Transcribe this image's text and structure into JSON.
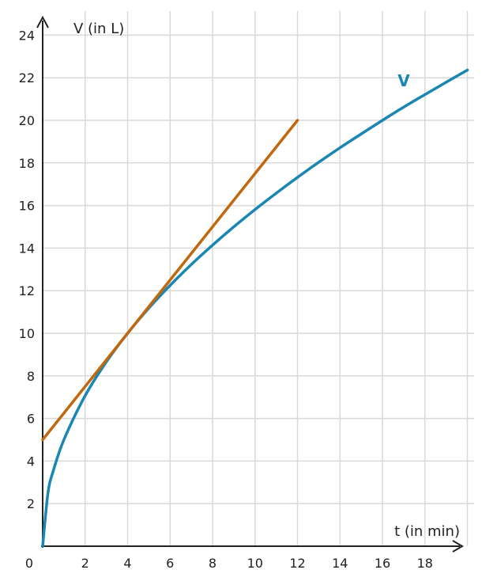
{
  "chart_data": {
    "type": "line",
    "xlabel": "t (in min)",
    "ylabel": "V (in L)",
    "origin_label": "0",
    "xlim": [
      0,
      20
    ],
    "ylim": [
      0,
      24
    ],
    "x_ticks": [
      2,
      4,
      6,
      8,
      10,
      12,
      14,
      16,
      18
    ],
    "y_ticks": [
      2,
      4,
      6,
      8,
      10,
      12,
      14,
      16,
      18,
      20,
      22,
      24
    ],
    "grid": true,
    "series": [
      {
        "name": "V",
        "color": "#1a87b3",
        "x": [
          0,
          0.25,
          0.5,
          1,
          2,
          3,
          4,
          5,
          6,
          7,
          8,
          9,
          10,
          11,
          12,
          13,
          14,
          15,
          16,
          17,
          18,
          19,
          20
        ],
        "y": [
          0,
          2.5,
          3.54,
          5,
          7.07,
          8.66,
          10,
          11.18,
          12.25,
          13.23,
          14.14,
          15,
          15.81,
          16.58,
          17.32,
          18.03,
          18.71,
          19.36,
          20,
          20.62,
          21.21,
          21.79,
          22.36
        ]
      },
      {
        "color": "#c0680f",
        "x": [
          0,
          12
        ],
        "y": [
          5,
          20
        ]
      }
    ]
  }
}
